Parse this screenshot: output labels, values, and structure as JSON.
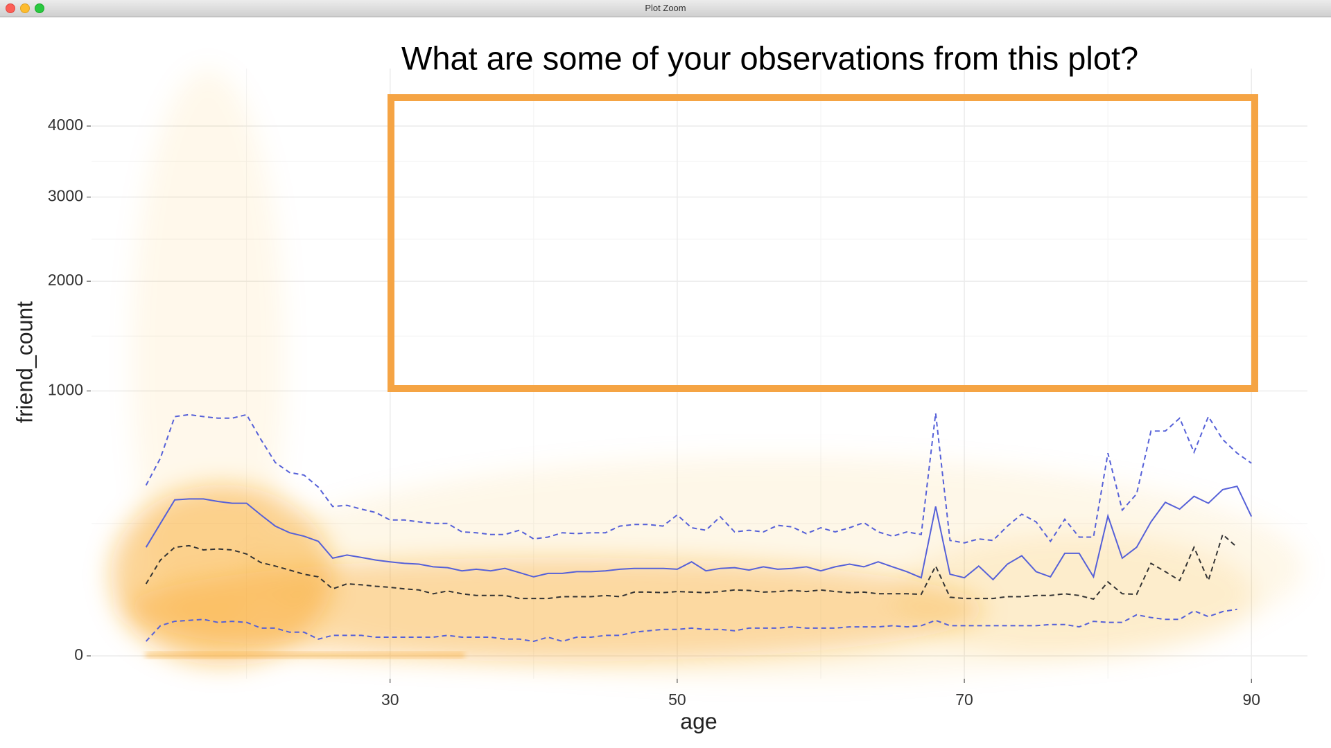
{
  "window_title": "Plot Zoom",
  "chart_data": {
    "type": "line",
    "annotation": "What are some of your observations from this plot?",
    "xlabel": "age",
    "ylabel": "friend_count",
    "yscale": "sqrt",
    "grid": true,
    "xlim": [
      9.2,
      93.9
    ],
    "ylim": [
      0,
      4800
    ],
    "xticks": [
      30,
      50,
      70,
      90
    ],
    "yticks": [
      0,
      1000,
      2000,
      3000,
      4000
    ],
    "x": [
      13,
      14,
      15,
      16,
      17,
      18,
      19,
      20,
      21,
      22,
      23,
      24,
      25,
      26,
      27,
      28,
      29,
      30,
      31,
      32,
      33,
      34,
      35,
      36,
      37,
      38,
      39,
      40,
      41,
      42,
      43,
      44,
      45,
      46,
      47,
      48,
      49,
      50,
      51,
      52,
      53,
      54,
      55,
      56,
      57,
      58,
      59,
      60,
      61,
      62,
      63,
      64,
      65,
      66,
      67,
      68,
      69,
      70,
      71,
      72,
      73,
      74,
      75,
      76,
      77,
      78,
      79,
      80,
      81,
      82,
      83,
      84,
      85,
      86,
      87,
      88,
      89,
      90
    ],
    "series": [
      {
        "color": "#5560d8",
        "linestyle": "solid",
        "values": [
          168,
          250,
          347,
          351,
          351,
          340,
          332,
          332,
          283,
          240,
          216,
          204,
          187,
          136,
          145,
          138,
          131,
          126,
          122,
          120,
          113,
          111,
          103,
          107,
          103,
          109,
          99,
          89,
          97,
          97,
          101,
          101,
          103,
          107,
          109,
          109,
          109,
          107,
          126,
          103,
          109,
          111,
          105,
          113,
          107,
          109,
          113,
          103,
          113,
          120,
          113,
          126,
          113,
          101,
          87,
          318,
          95,
          87,
          115,
          83,
          120,
          143,
          101,
          89,
          150,
          150,
          89,
          279,
          136,
          168,
          256,
          336,
          307,
          363,
          332,
          394,
          410,
          277
        ]
      },
      {
        "color": "#5560d8",
        "linestyle": "dashed",
        "values": [
          415,
          557,
          816,
          829,
          816,
          805,
          805,
          829,
          667,
          533,
          479,
          466,
          406,
          318,
          323,
          307,
          293,
          263,
          263,
          256,
          250,
          250,
          219,
          216,
          210,
          210,
          225,
          195,
          201,
          216,
          213,
          216,
          216,
          240,
          246,
          246,
          240,
          283,
          234,
          225,
          276,
          219,
          225,
          219,
          243,
          237,
          213,
          234,
          219,
          234,
          253,
          219,
          204,
          219,
          210,
          839,
          190,
          182,
          195,
          190,
          240,
          286,
          256,
          187,
          266,
          201,
          201,
          586,
          303,
          374,
          720,
          720,
          805,
          591,
          816,
          667,
          586,
          529
        ]
      },
      {
        "color": "#333333",
        "linestyle": "dashed",
        "values": [
          74,
          131,
          168,
          173,
          160,
          163,
          160,
          148,
          124,
          115,
          105,
          95,
          89,
          64,
          74,
          72,
          69,
          67,
          64,
          62,
          55,
          60,
          55,
          52,
          52,
          52,
          47,
          47,
          47,
          50,
          50,
          50,
          52,
          50,
          58,
          58,
          57,
          59,
          58,
          57,
          59,
          62,
          61,
          58,
          59,
          61,
          59,
          62,
          59,
          57,
          58,
          55,
          55,
          55,
          54,
          115,
          49,
          47,
          47,
          47,
          50,
          50,
          52,
          52,
          55,
          52,
          46,
          78,
          55,
          54,
          122,
          101,
          81,
          168,
          81,
          210,
          168,
          null
        ]
      },
      {
        "color": "#5560d8",
        "linestyle": "dashed",
        "values": [
          3,
          13,
          17,
          18,
          19,
          16,
          17,
          16,
          11,
          11,
          8,
          8,
          4,
          6,
          6,
          6,
          5,
          5,
          5,
          5,
          5,
          6,
          5,
          5,
          5,
          4,
          4,
          3,
          5,
          3,
          5,
          5,
          6,
          6,
          8,
          9,
          10,
          10,
          11,
          10,
          10,
          9,
          11,
          11,
          11,
          12,
          11,
          11,
          11,
          12,
          12,
          12,
          13,
          12,
          13,
          18,
          13,
          13,
          13,
          13,
          13,
          13,
          13,
          14,
          14,
          12,
          17,
          16,
          16,
          24,
          21,
          19,
          19,
          29,
          22,
          28,
          31,
          null
        ]
      }
    ]
  }
}
